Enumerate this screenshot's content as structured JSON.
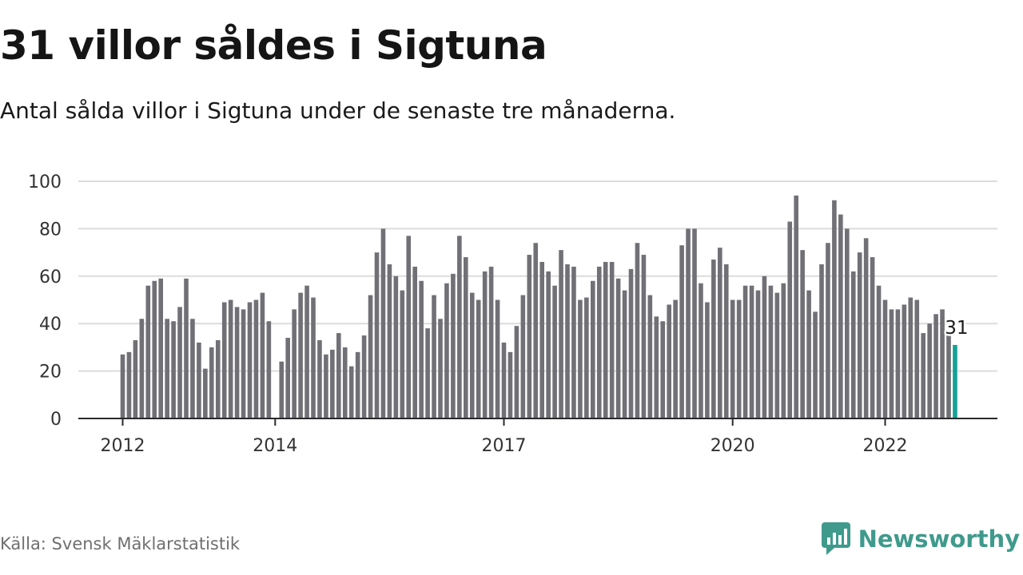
{
  "title": "31 villor såldes i Sigtuna",
  "subtitle": "Antal sålda villor i Sigtuna under de senaste tre månaderna.",
  "source": "Källa: Svensk Mäklarstatistik",
  "brand": {
    "name": "Newsworthy",
    "icon": "newsworthy-logo-icon"
  },
  "colors": {
    "bar": "#717076",
    "highlight": "#14a296",
    "grid": "#dcdcdc",
    "axis": "#2a2a2a",
    "brand": "#3f9a8c"
  },
  "chart_data": {
    "type": "bar",
    "ylim": [
      0,
      100
    ],
    "yticks": [
      0,
      20,
      40,
      60,
      80,
      100
    ],
    "xticks": [
      {
        "label": "2012",
        "index": 0
      },
      {
        "label": "2014",
        "index": 24
      },
      {
        "label": "2017",
        "index": 60
      },
      {
        "label": "2020",
        "index": 96
      },
      {
        "label": "2022",
        "index": 120
      }
    ],
    "start": "2012-01",
    "values": [
      27,
      28,
      33,
      42,
      56,
      58,
      59,
      42,
      41,
      47,
      59,
      42,
      32,
      21,
      30,
      33,
      49,
      50,
      47,
      46,
      49,
      50,
      53,
      41,
      null,
      24,
      34,
      46,
      53,
      56,
      51,
      33,
      27,
      29,
      36,
      30,
      22,
      28,
      35,
      52,
      70,
      80,
      65,
      60,
      54,
      77,
      64,
      58,
      38,
      52,
      42,
      57,
      61,
      77,
      68,
      53,
      50,
      62,
      64,
      50,
      32,
      28,
      39,
      52,
      69,
      74,
      66,
      62,
      56,
      71,
      65,
      64,
      50,
      51,
      58,
      64,
      66,
      66,
      59,
      54,
      63,
      74,
      69,
      52,
      43,
      41,
      48,
      50,
      73,
      80,
      80,
      57,
      49,
      67,
      72,
      65,
      50,
      50,
      56,
      56,
      54,
      60,
      56,
      53,
      57,
      83,
      94,
      71,
      54,
      45,
      65,
      74,
      92,
      86,
      80,
      62,
      70,
      76,
      68,
      56,
      50,
      46,
      46,
      48,
      51,
      50,
      36,
      40,
      44,
      46,
      35,
      31
    ],
    "highlight": {
      "index": 131,
      "label": "31"
    }
  }
}
